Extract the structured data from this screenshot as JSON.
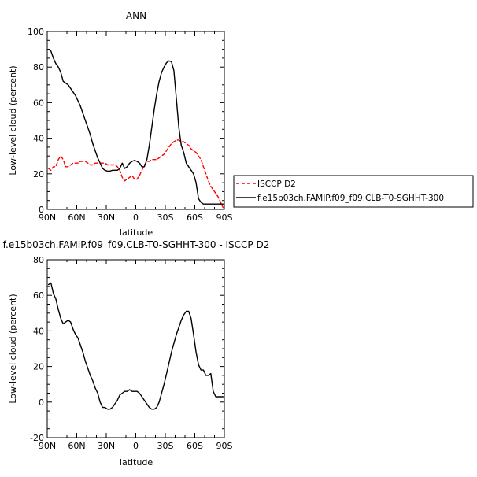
{
  "chart_data": [
    {
      "type": "line",
      "title": "ANN",
      "xlabel": "latitude",
      "ylabel": "Low-level cloud (percent)",
      "xlim": [
        90,
        -90
      ],
      "ylim": [
        0,
        100
      ],
      "x_ticks": [
        90,
        60,
        30,
        0,
        -30,
        -60,
        -90
      ],
      "x_tick_labels": [
        "90N",
        "60N",
        "30N",
        "0",
        "30S",
        "60S",
        "90S"
      ],
      "y_ticks": [
        0,
        20,
        40,
        60,
        80,
        100
      ],
      "y_tick_labels": [
        "0",
        "20",
        "40",
        "60",
        "80",
        "100"
      ],
      "legend_position": "right",
      "grid": false,
      "series": [
        {
          "name": "ISCCP D2",
          "color": "#ff0000",
          "dash": "dashed",
          "x": [
            88.75,
            86.25,
            83.75,
            81.25,
            78.75,
            76.25,
            73.75,
            71.25,
            68.75,
            66.25,
            63.75,
            61.25,
            58.75,
            56.25,
            53.75,
            51.25,
            48.75,
            46.25,
            43.75,
            41.25,
            38.75,
            36.25,
            33.75,
            31.25,
            28.75,
            26.25,
            23.75,
            21.25,
            18.75,
            16.25,
            13.75,
            11.25,
            8.75,
            6.25,
            3.75,
            1.25,
            -1.25,
            -3.75,
            -6.25,
            -8.75,
            -11.25,
            -13.75,
            -16.25,
            -18.75,
            -21.25,
            -23.75,
            -26.25,
            -28.75,
            -31.25,
            -33.75,
            -36.25,
            -38.75,
            -41.25,
            -43.75,
            -46.25,
            -48.75,
            -51.25,
            -53.75,
            -56.25,
            -58.75,
            -61.25,
            -63.75,
            -66.25,
            -68.75,
            -71.25,
            -73.75,
            -76.25,
            -78.75,
            -81.25,
            -83.75,
            -86.25,
            -88.75
          ],
          "y": [
            23,
            22,
            24,
            24,
            28,
            30,
            28,
            24,
            24,
            25,
            26,
            26,
            26,
            27,
            27,
            27,
            26,
            25,
            25,
            26,
            26,
            26,
            26,
            26,
            25,
            25,
            25,
            25,
            24,
            22,
            18,
            16,
            17,
            18,
            19,
            17,
            17,
            19,
            22,
            25,
            27,
            27,
            28,
            28,
            28,
            29,
            30,
            31,
            33,
            35,
            37,
            38,
            39,
            39,
            38,
            38,
            37,
            36,
            34,
            33,
            32,
            30,
            28,
            24,
            20,
            16,
            13,
            11,
            9,
            7,
            4,
            1
          ]
        },
        {
          "name": "f.e15b03ch.FAMIP.f09_f09.CLB-T0-SGHHT-300",
          "color": "#000000",
          "dash": "solid",
          "x": [
            88.75,
            86.25,
            83.75,
            81.25,
            78.75,
            76.25,
            73.75,
            71.25,
            68.75,
            66.25,
            63.75,
            61.25,
            58.75,
            56.25,
            53.75,
            51.25,
            48.75,
            46.25,
            43.75,
            41.25,
            38.75,
            36.25,
            33.75,
            31.25,
            28.75,
            26.25,
            23.75,
            21.25,
            18.75,
            16.25,
            13.75,
            11.25,
            8.75,
            6.25,
            3.75,
            1.25,
            -1.25,
            -3.75,
            -6.25,
            -8.75,
            -11.25,
            -13.75,
            -16.25,
            -18.75,
            -21.25,
            -23.75,
            -26.25,
            -28.75,
            -31.25,
            -33.75,
            -36.25,
            -38.75,
            -41.25,
            -43.75,
            -46.25,
            -48.75,
            -51.25,
            -53.75,
            -56.25,
            -58.75,
            -61.25,
            -63.75,
            -66.25,
            -68.75,
            -71.25,
            -73.75,
            -76.25,
            -78.75,
            -81.25,
            -83.75,
            -86.25,
            -88.75
          ],
          "y": [
            90,
            89,
            85,
            82,
            80,
            77,
            72,
            71,
            70,
            68,
            66,
            64,
            61,
            58,
            54,
            50,
            46,
            42,
            37,
            33,
            29,
            26,
            23,
            22,
            21.5,
            21.5,
            22,
            22,
            22,
            23,
            26,
            23,
            24,
            26,
            27,
            27.5,
            27,
            26,
            24,
            24,
            28,
            36,
            46,
            56,
            65,
            72,
            77,
            80,
            82.5,
            83.5,
            83,
            78,
            62,
            46,
            36,
            32,
            26,
            24,
            22,
            20,
            15,
            6,
            4,
            3,
            3,
            3,
            3,
            3,
            3,
            3,
            3,
            3
          ]
        }
      ]
    },
    {
      "type": "line",
      "title": "f.e15b03ch.FAMIP.f09_f09.CLB-T0-SGHHT-300 - ISCCP D2",
      "xlabel": "latitude",
      "ylabel": "Low-level cloud (percent)",
      "xlim": [
        90,
        -90
      ],
      "ylim": [
        -20,
        80
      ],
      "x_ticks": [
        90,
        60,
        30,
        0,
        -30,
        -60,
        -90
      ],
      "x_tick_labels": [
        "90N",
        "60N",
        "30N",
        "0",
        "30S",
        "60S",
        "90S"
      ],
      "y_ticks": [
        -20,
        0,
        20,
        40,
        60,
        80
      ],
      "y_tick_labels": [
        "-20",
        "0",
        "20",
        "40",
        "60",
        "80"
      ],
      "grid": false,
      "series": [
        {
          "color": "#000000",
          "dash": "solid",
          "x": [
            88.75,
            86.25,
            83.75,
            81.25,
            78.75,
            76.25,
            73.75,
            71.25,
            68.75,
            66.25,
            63.75,
            61.25,
            58.75,
            56.25,
            53.75,
            51.25,
            48.75,
            46.25,
            43.75,
            41.25,
            38.75,
            36.25,
            33.75,
            31.25,
            28.75,
            26.25,
            23.75,
            21.25,
            18.75,
            16.25,
            13.75,
            11.25,
            8.75,
            6.25,
            3.75,
            1.25,
            -1.25,
            -3.75,
            -6.25,
            -8.75,
            -11.25,
            -13.75,
            -16.25,
            -18.75,
            -21.25,
            -23.75,
            -26.25,
            -28.75,
            -31.25,
            -33.75,
            -36.25,
            -38.75,
            -41.25,
            -43.75,
            -46.25,
            -48.75,
            -51.25,
            -53.75,
            -56.25,
            -58.75,
            -61.25,
            -63.75,
            -66.25,
            -68.75,
            -71.25,
            -73.75,
            -76.25,
            -78.75,
            -81.25,
            -83.75,
            -86.25,
            -88.75
          ],
          "y": [
            66,
            67,
            61,
            58,
            52,
            47,
            44,
            45,
            46,
            45,
            41,
            38,
            36,
            32,
            28,
            23,
            19,
            15,
            12,
            8,
            5,
            0,
            -3,
            -3,
            -4,
            -4,
            -3,
            -1,
            1,
            4,
            5,
            6,
            6,
            7,
            6,
            6,
            6,
            5,
            3,
            1,
            -1,
            -3,
            -4,
            -4,
            -3,
            0,
            5,
            10,
            16,
            22,
            28,
            33,
            38,
            42,
            46,
            49,
            51,
            51,
            47,
            38,
            28,
            21,
            18,
            18,
            15,
            15,
            16,
            6,
            3,
            3,
            3,
            3
          ]
        }
      ]
    }
  ],
  "legend": {
    "items": [
      {
        "label": "ISCCP D2",
        "color": "#ff0000",
        "dash": "dashed"
      },
      {
        "label": "f.e15b03ch.FAMIP.f09_f09.CLB-T0-SGHHT-300",
        "color": "#000000",
        "dash": "solid"
      }
    ]
  }
}
